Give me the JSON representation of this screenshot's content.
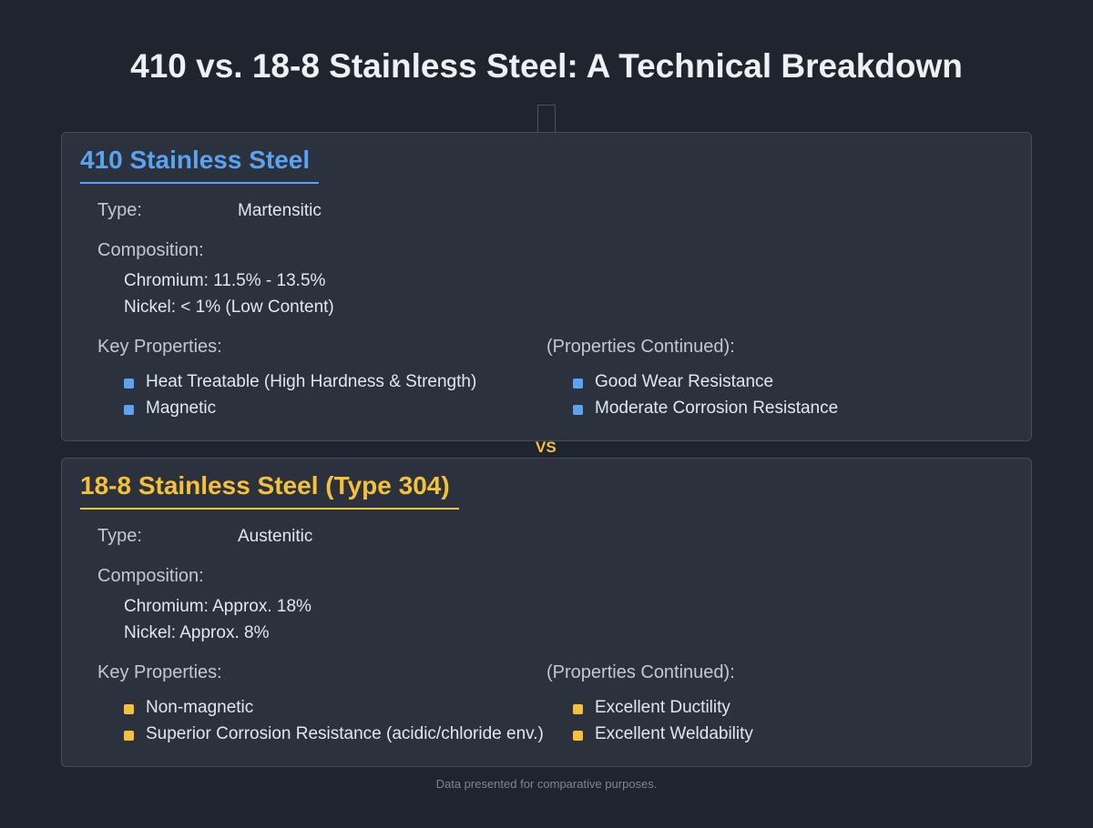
{
  "header": {
    "title": "410 vs. 18-8 Stainless Steel: A Technical Breakdown"
  },
  "cards": [
    {
      "title": "410 Stainless Steel",
      "type_label": "Type:",
      "type_value": "Martensitic",
      "composition_label": "Composition:",
      "composition": [
        "Chromium: 11.5% - 13.5%",
        "Nickel: < 1% (Low Content)"
      ],
      "properties_label": "Key Properties:",
      "properties": [
        "Heat Treatable (High Hardness & Strength)",
        "Magnetic"
      ],
      "properties_continued_label": "(Properties Continued):",
      "properties_continued": [
        "Good Wear Resistance",
        "Moderate Corrosion Resistance"
      ]
    },
    {
      "title": "18-8 Stainless Steel (Type 304)",
      "type_label": "Type:",
      "type_value": "Austenitic",
      "composition_label": "Composition:",
      "composition": [
        "Chromium: Approx. 18%",
        "Nickel: Approx. 8%"
      ],
      "properties_label": "Key Properties:",
      "properties": [
        "Non-magnetic",
        "Superior Corrosion Resistance (acidic/chloride env.)"
      ],
      "properties_continued_label": "(Properties Continued):",
      "properties_continued": [
        "Excellent Ductility",
        "Excellent Weldability"
      ]
    }
  ],
  "vs_label": "VS",
  "footer": {
    "note": "Data presented for comparative purposes."
  }
}
